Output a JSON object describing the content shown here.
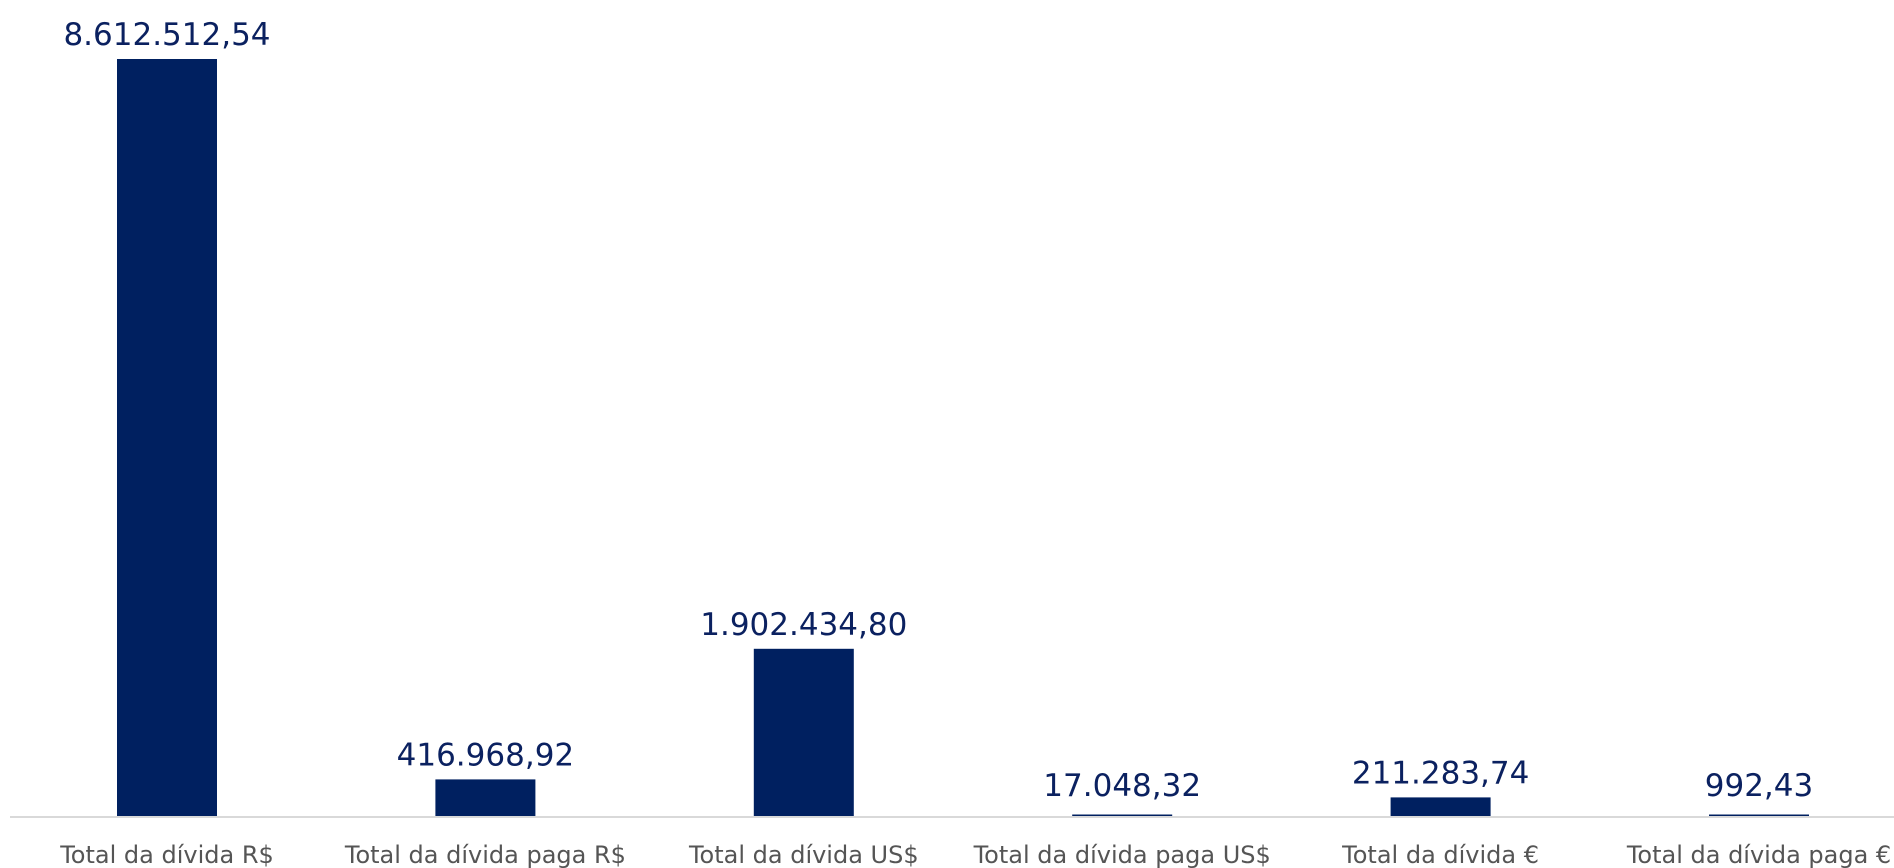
{
  "chart_data": {
    "type": "bar",
    "categories": [
      "Total da dívida R$",
      "Total da dívida paga R$",
      "Total da dívida US$",
      "Total da dívida paga US$",
      "Total da dívida €",
      "Total da dívida paga €"
    ],
    "values": [
      8612512.54,
      416968.92,
      1902434.8,
      17048.32,
      211283.74,
      992.43
    ],
    "value_labels": [
      "8.612.512,54",
      "416.968,92",
      "1.902.434,80",
      "17.048,32",
      "211.283,74",
      "992,43"
    ],
    "ylim": [
      0,
      8612512.54
    ],
    "grid": false,
    "legend": "none",
    "bar_color": "#002060",
    "label_color": "#0b2160",
    "axis_color": "#d9d9d9"
  }
}
